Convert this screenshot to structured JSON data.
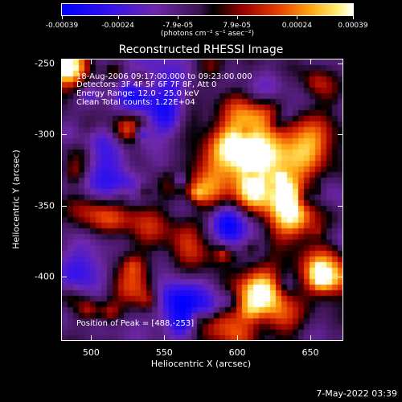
{
  "colorbar": {
    "tick_labels": [
      "-0.00039",
      "-0.00024",
      "-7.9e-05",
      "7.9e-05",
      "0.00024",
      "0.00039"
    ],
    "units": "(photons cm⁻² s⁻¹ asec⁻²)"
  },
  "title": "Reconstructed RHESSI Image",
  "info": {
    "time_range": "18-Aug-2006 09:17:00.000 to 09:23:00.000",
    "detectors": "Detectors: 3F 4F 5F 6F 7F 8F, Att 0",
    "energy": "Energy Range: 12.0 - 25.0 keV",
    "clean": "Clean     Total counts: 1.22E+04",
    "peak": "Position of Peak = [488,-253]"
  },
  "axes": {
    "xlabel": "Heliocentric X (arcsec)",
    "ylabel": "Heliocentric Y (arcsec)",
    "x_ticks": [
      "500",
      "550",
      "600",
      "650"
    ],
    "y_ticks": [
      "-250",
      "-300",
      "-350",
      "-400"
    ]
  },
  "timestamp": "7-May-2022 03:39",
  "colors": {
    "background": "#000000",
    "axes": "#ffffff"
  },
  "chart_data": {
    "type": "heatmap",
    "title": "Reconstructed RHESSI Image",
    "xlabel": "Heliocentric X (arcsec)",
    "ylabel": "Heliocentric Y (arcsec)",
    "xlim": [
      480,
      672
    ],
    "ylim": [
      -445,
      -247
    ],
    "x_ticks": [
      500,
      550,
      600,
      650
    ],
    "y_ticks": [
      -250,
      -300,
      -350,
      -400
    ],
    "colorbar_range": [
      -0.00039,
      0.00039
    ],
    "colorbar_ticks": [
      -0.00039,
      -0.00024,
      -7.9e-05,
      7.9e-05,
      0.00024,
      0.00039
    ],
    "colormap": "blue-purple-black-red-orange-yellow-white",
    "peak_position": [
      488,
      -253
    ]
  }
}
